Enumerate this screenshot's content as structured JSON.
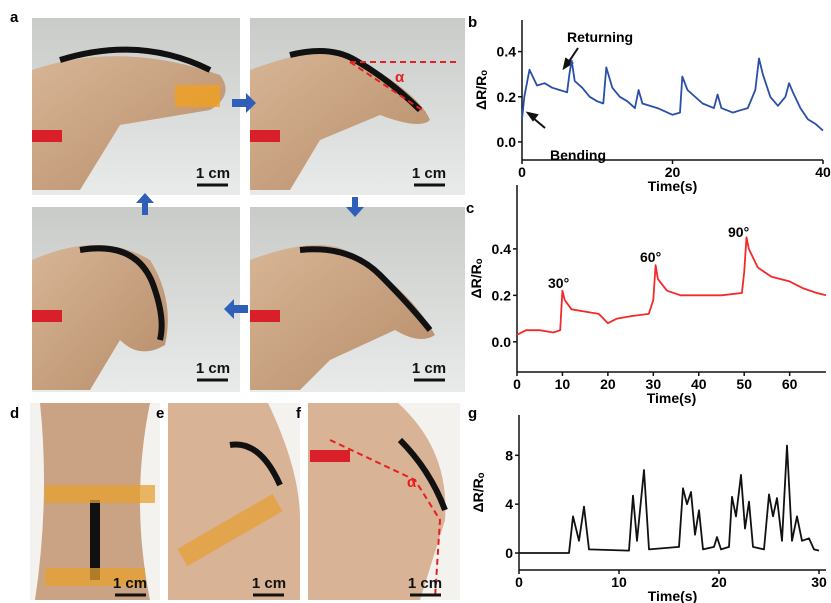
{
  "panel_labels": [
    "a",
    "b",
    "c",
    "d",
    "e",
    "f",
    "g"
  ],
  "scale_bar": "1 cm",
  "angle_symbol": "α",
  "chart_data": [
    {
      "type": "line",
      "xlabel": "Time(s)",
      "ylabel": "ΔR/Rₒ",
      "color": "#2a4fa8",
      "annotations": [
        "Returning",
        "Bending"
      ],
      "xlim": [
        0,
        40
      ],
      "ylim": [
        -0.08,
        0.54
      ],
      "xticks": [
        0,
        20,
        40
      ],
      "yticks": [
        {
          "value": 0,
          "label": "0.0"
        },
        0.2,
        0.4
      ],
      "x": [
        0,
        0.3,
        1,
        2,
        3,
        4,
        5,
        6,
        6.3,
        6.6,
        7,
        8,
        9,
        10,
        10.8,
        11.2,
        12,
        13,
        14,
        15,
        15.5,
        16,
        18,
        20,
        21,
        21.3,
        22,
        24,
        25.5,
        26,
        26.5,
        28,
        29,
        30,
        31,
        31.5,
        32,
        33,
        34,
        35,
        35.5,
        36,
        37,
        38,
        39,
        40
      ],
      "values": [
        0.1,
        0.2,
        0.32,
        0.25,
        0.26,
        0.24,
        0.23,
        0.22,
        0.3,
        0.36,
        0.27,
        0.24,
        0.2,
        0.18,
        0.17,
        0.33,
        0.24,
        0.2,
        0.18,
        0.15,
        0.23,
        0.17,
        0.15,
        0.12,
        0.13,
        0.29,
        0.23,
        0.17,
        0.15,
        0.21,
        0.15,
        0.13,
        0.14,
        0.15,
        0.23,
        0.37,
        0.3,
        0.2,
        0.16,
        0.2,
        0.26,
        0.22,
        0.15,
        0.1,
        0.08,
        0.05
      ]
    },
    {
      "type": "line",
      "xlabel": "Time(s)",
      "ylabel": "ΔR/Rₒ",
      "color": "#f22a2a",
      "annotations": [
        "30°",
        "60°",
        "90°"
      ],
      "xlim": [
        0,
        68
      ],
      "ylim": [
        -0.13,
        0.675
      ],
      "xticks": [
        0,
        10,
        20,
        30,
        40,
        50,
        60
      ],
      "yticks": [
        {
          "value": 0,
          "label": "0.0"
        },
        0.2,
        0.4
      ],
      "x": [
        0,
        2,
        5,
        8,
        9.5,
        10,
        10.5,
        12,
        15,
        18,
        20,
        22,
        25,
        29,
        30,
        30.5,
        31,
        33,
        36,
        40,
        45,
        49.5,
        50,
        50.5,
        51,
        53,
        56,
        60,
        63,
        66,
        68
      ],
      "values": [
        0.03,
        0.05,
        0.05,
        0.04,
        0.05,
        0.22,
        0.18,
        0.14,
        0.13,
        0.12,
        0.08,
        0.1,
        0.11,
        0.12,
        0.18,
        0.33,
        0.27,
        0.22,
        0.2,
        0.2,
        0.2,
        0.21,
        0.3,
        0.45,
        0.4,
        0.32,
        0.28,
        0.26,
        0.23,
        0.21,
        0.2
      ]
    },
    {
      "type": "line",
      "xlabel": "Time(s)",
      "ylabel": "ΔR/Rₒ",
      "color": "#111111",
      "xlim": [
        0,
        30.7
      ],
      "ylim": [
        -1.39,
        11.3
      ],
      "xticks": [
        0,
        10,
        20,
        30
      ],
      "yticks": [
        0,
        4,
        8
      ],
      "x": [
        0,
        5,
        5.4,
        6,
        6.5,
        7,
        11,
        11.4,
        11.8,
        12.5,
        13,
        16,
        16.4,
        16.8,
        17.2,
        17.6,
        18,
        18.4,
        19.5,
        19.8,
        20.2,
        21,
        21.3,
        21.7,
        22.2,
        22.6,
        23,
        23.4,
        24.5,
        25,
        25.4,
        25.8,
        26.3,
        26.8,
        27.3,
        27.8,
        28.3,
        29,
        29.5,
        30
      ],
      "values": [
        0,
        0,
        3,
        1,
        3.8,
        0.3,
        0.2,
        4.7,
        1,
        6.8,
        0.3,
        0.5,
        5.3,
        4,
        5,
        1.5,
        3.5,
        0.3,
        0.5,
        1.3,
        0.3,
        0.5,
        4.6,
        3,
        6.4,
        2,
        4.2,
        0.5,
        0.3,
        4.8,
        3,
        4.5,
        1,
        8.8,
        1,
        3,
        1,
        1.2,
        0.3,
        0.2
      ]
    }
  ]
}
